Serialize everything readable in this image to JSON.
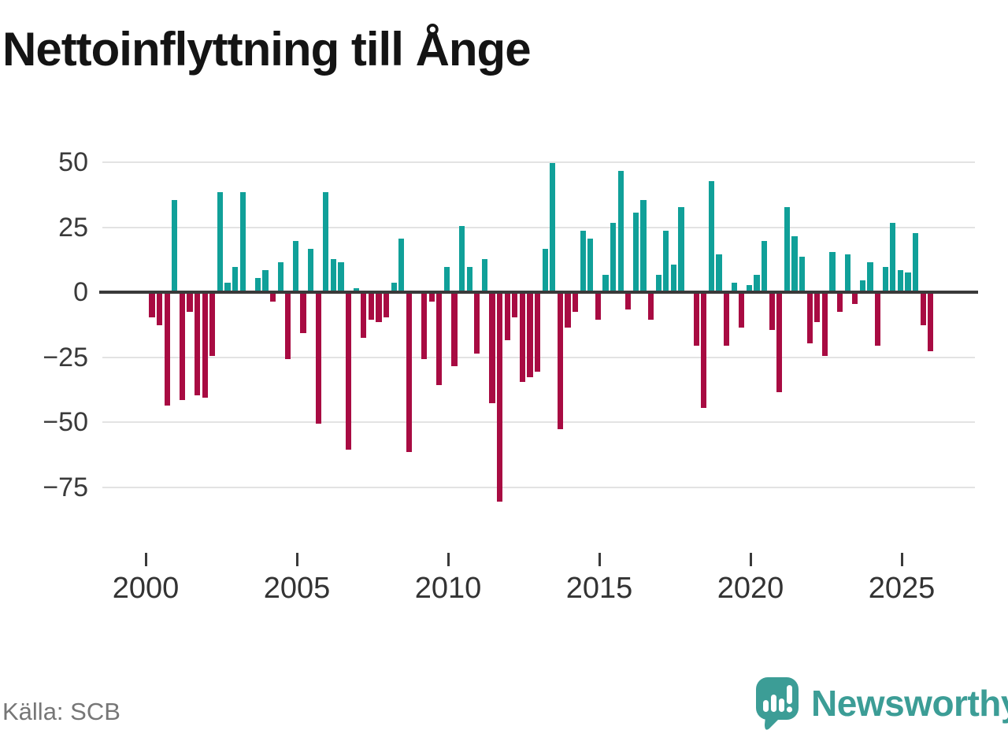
{
  "title": "Nettoinflyttning till Ånge",
  "source": "Källa: SCB",
  "brand": {
    "name": "Newsworthy",
    "color": "#3c9d96",
    "icon": "speech-bubble-bar-chart"
  },
  "colors": {
    "positive": "#10a099",
    "negative": "#a80b42",
    "axis": "#3a3a3a",
    "grid": "#e3e3e3",
    "title_text": "#141414",
    "tick_text": "#333333",
    "source_text": "#767676"
  },
  "chart_data": {
    "type": "bar",
    "title": "Nettoinflyttning till Ånge",
    "xlabel": "",
    "ylabel": "",
    "grid": "horizontal",
    "legend": "none",
    "ylim": [
      -85,
      55
    ],
    "yticks": [
      50,
      25,
      0,
      -25,
      -50,
      -75
    ],
    "ytick_labels": [
      "50",
      "25",
      "0",
      "−25",
      "−50",
      "−75"
    ],
    "xtick_years": [
      2000,
      2005,
      2010,
      2015,
      2020,
      2025
    ],
    "xtick_labels": [
      "2000",
      "2005",
      "2010",
      "2015",
      "2020",
      "2025"
    ],
    "categories": [
      "2000Q1",
      "2000Q2",
      "2000Q3",
      "2000Q4",
      "2001Q1",
      "2001Q2",
      "2001Q3",
      "2001Q4",
      "2002Q1",
      "2002Q2",
      "2002Q3",
      "2002Q4",
      "2003Q1",
      "2003Q2",
      "2003Q3",
      "2003Q4",
      "2004Q1",
      "2004Q2",
      "2004Q3",
      "2004Q4",
      "2005Q1",
      "2005Q2",
      "2005Q3",
      "2005Q4",
      "2006Q1",
      "2006Q2",
      "2006Q3",
      "2006Q4",
      "2007Q1",
      "2007Q2",
      "2007Q3",
      "2007Q4",
      "2008Q1",
      "2008Q2",
      "2008Q3",
      "2008Q4",
      "2009Q1",
      "2009Q2",
      "2009Q3",
      "2009Q4",
      "2010Q1",
      "2010Q2",
      "2010Q3",
      "2010Q4",
      "2011Q1",
      "2011Q2",
      "2011Q3",
      "2011Q4",
      "2012Q1",
      "2012Q2",
      "2012Q3",
      "2012Q4",
      "2013Q1",
      "2013Q2",
      "2013Q3",
      "2013Q4",
      "2014Q1",
      "2014Q2",
      "2014Q3",
      "2014Q4",
      "2015Q1",
      "2015Q2",
      "2015Q3",
      "2015Q4",
      "2016Q1",
      "2016Q2",
      "2016Q3",
      "2016Q4",
      "2017Q1",
      "2017Q2",
      "2017Q3",
      "2017Q4",
      "2018Q1",
      "2018Q2",
      "2018Q3",
      "2018Q4",
      "2019Q1",
      "2019Q2",
      "2019Q3",
      "2019Q4",
      "2020Q1",
      "2020Q2",
      "2020Q3",
      "2020Q4",
      "2021Q1",
      "2021Q2",
      "2021Q3",
      "2021Q4",
      "2022Q1",
      "2022Q2",
      "2022Q3",
      "2022Q4",
      "2023Q1",
      "2023Q2",
      "2023Q3",
      "2023Q4",
      "2024Q1",
      "2024Q2",
      "2024Q3",
      "2024Q4",
      "2025Q1",
      "2025Q2",
      "2025Q3",
      "2025Q4"
    ],
    "values": [
      -9,
      -12,
      -43,
      35,
      -41,
      -7,
      -39,
      -40,
      -24,
      38,
      3,
      9,
      38,
      0,
      5,
      8,
      -3,
      11,
      -25,
      19,
      -15,
      16,
      -50,
      38,
      12,
      11,
      -60,
      1,
      -17,
      -10,
      -11,
      -9,
      3,
      20,
      -61,
      0,
      -25,
      -3,
      -35,
      9,
      -28,
      25,
      9,
      -23,
      12,
      -42,
      -80,
      -18,
      -9,
      -34,
      -32,
      -30,
      16,
      49,
      -52,
      -13,
      -7,
      23,
      20,
      -10,
      6,
      26,
      46,
      -6,
      30,
      35,
      -10,
      6,
      23,
      10,
      32,
      0,
      -20,
      -44,
      42,
      14,
      -20,
      3,
      -13,
      2,
      6,
      19,
      -14,
      -38,
      32,
      21,
      13,
      -19,
      -11,
      -24,
      15,
      -7,
      14,
      -4,
      4,
      11,
      -20,
      9,
      26,
      8,
      7,
      22,
      -12,
      -22
    ]
  }
}
